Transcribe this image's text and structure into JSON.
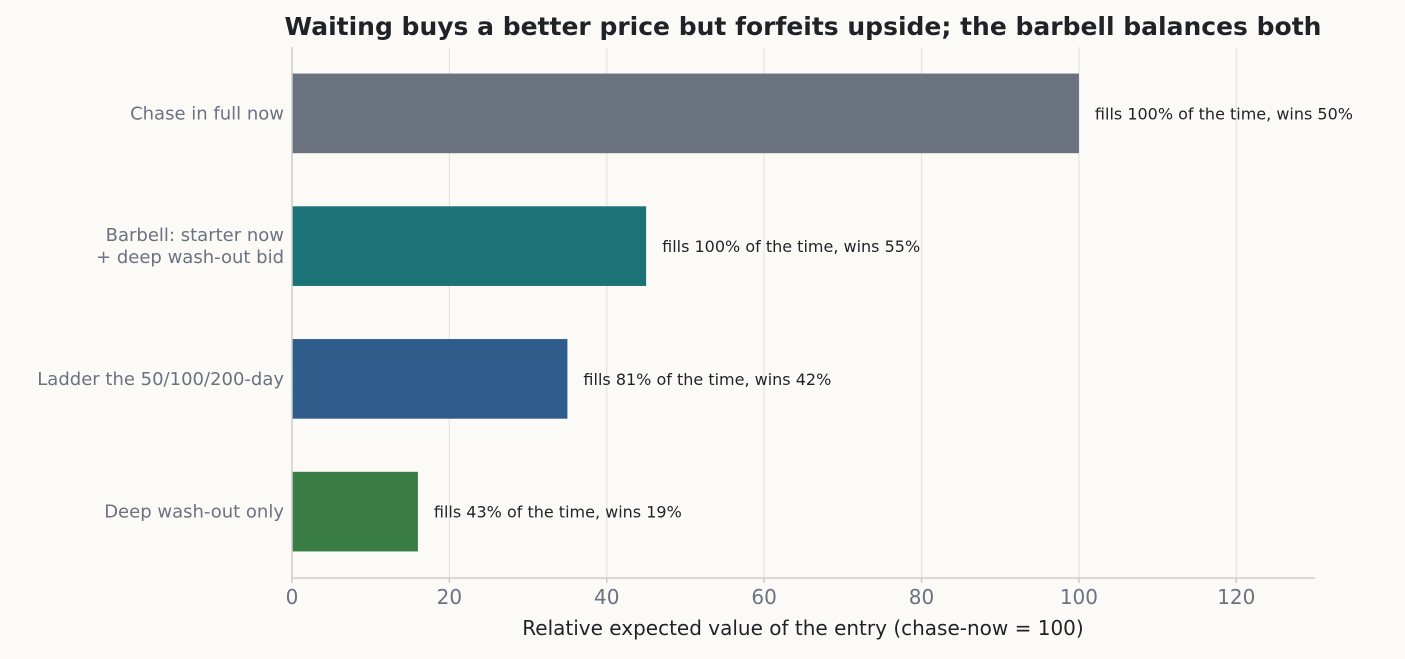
{
  "chart_data": {
    "type": "bar",
    "orientation": "horizontal",
    "title": "Waiting buys a better price but forfeits upside; the barbell balances both",
    "xlabel": "Relative expected value of the entry (chase-now = 100)",
    "ylabel": "",
    "xlim": [
      0,
      130
    ],
    "xticks": [
      0,
      20,
      40,
      60,
      80,
      100,
      120
    ],
    "grid": "vertical",
    "categories": [
      [
        "Chase in full now"
      ],
      [
        "Barbell: starter now",
        "+ deep wash-out bid"
      ],
      [
        "Ladder the 50/100/200-day"
      ],
      [
        "Deep wash-out only"
      ]
    ],
    "values": [
      100,
      45,
      35,
      16
    ],
    "data_labels": [
      "fills 100% of the time, wins 50%",
      "fills 100% of the time, wins 55%",
      "fills 81% of the time, wins 42%",
      "fills 43% of the time, wins 19%"
    ],
    "colors": [
      "#6b7280",
      "#1b7377",
      "#2e5d8c",
      "#3a7d46"
    ]
  }
}
